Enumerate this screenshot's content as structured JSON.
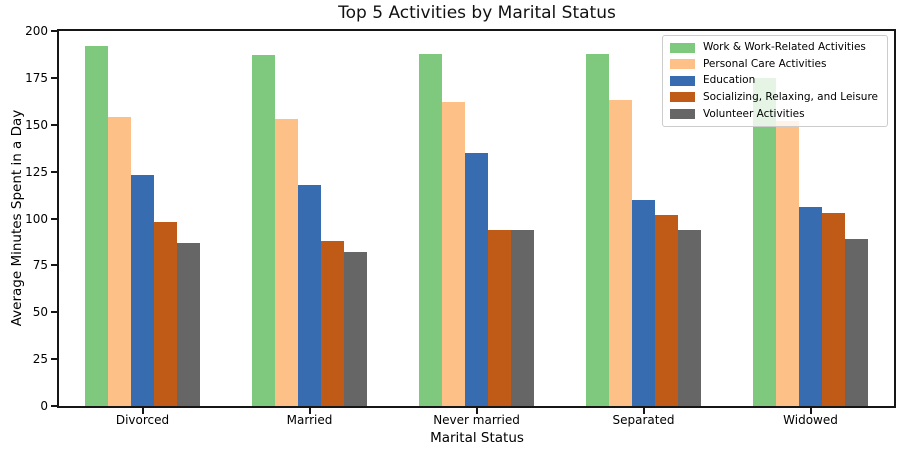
{
  "chart_data": {
    "type": "bar",
    "title": "Top 5 Activities by Marital Status",
    "xlabel": "Marital Status",
    "ylabel": "Average Minutes Spent in a Day",
    "categories": [
      "Divorced",
      "Married",
      "Never married",
      "Separated",
      "Widowed"
    ],
    "series": [
      {
        "name": "Work & Work-Related Activities",
        "color": "#7fc97f",
        "values": [
          192,
          187,
          188,
          188,
          175
        ]
      },
      {
        "name": "Personal Care Activities",
        "color": "#fdc086",
        "values": [
          154,
          153,
          162,
          163,
          152
        ]
      },
      {
        "name": "Education",
        "color": "#386cb0",
        "values": [
          123,
          118,
          135,
          110,
          106
        ]
      },
      {
        "name": "Socializing, Relaxing, and Leisure",
        "color": "#bf5b17",
        "values": [
          98,
          88,
          94,
          102,
          103
        ]
      },
      {
        "name": "Volunteer Activities",
        "color": "#666666",
        "values": [
          87,
          82,
          94,
          94,
          89
        ]
      }
    ],
    "ylim": [
      0,
      200
    ],
    "yticks": [
      0,
      25,
      50,
      75,
      100,
      125,
      150,
      175,
      200
    ],
    "grid": false,
    "legend_position": "upper right",
    "axis_color": "#161616"
  }
}
